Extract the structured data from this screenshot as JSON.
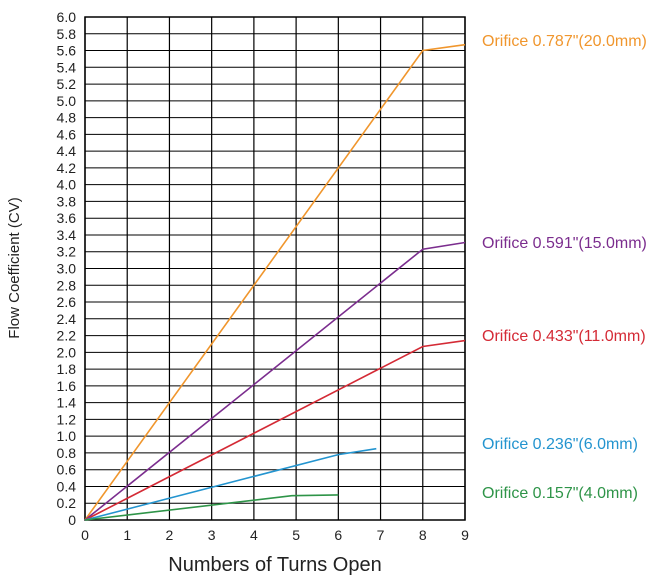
{
  "chart_data": {
    "type": "line",
    "xlabel": "Numbers of Turns Open",
    "ylabel": "Flow Coefficient (CV)",
    "xlim": [
      0,
      9
    ],
    "ylim": [
      0,
      6.0
    ],
    "x_ticks": [
      "0",
      "1",
      "2",
      "3",
      "4",
      "5",
      "6",
      "7",
      "8",
      "9"
    ],
    "y_ticks": [
      "0",
      "0.2",
      "0.4",
      "0.6",
      "0.8",
      "1.0",
      "1.2",
      "1.4",
      "1.6",
      "1.8",
      "2.0",
      "2.2",
      "2.4",
      "2.6",
      "2.8",
      "3.0",
      "3.2",
      "3.4",
      "3.6",
      "3.8",
      "4.0",
      "4.2",
      "4.4",
      "4.6",
      "4.8",
      "5.0",
      "5.2",
      "5.4",
      "5.6",
      "5.8",
      "6.0"
    ],
    "grid": true,
    "legend": "right",
    "series": [
      {
        "name": "Orifice 0.787\"(20.0mm)",
        "color": "#f0962d",
        "x": [
          0,
          8,
          9
        ],
        "y": [
          0,
          5.6,
          5.67
        ]
      },
      {
        "name": "Orifice 0.591\"(15.0mm)",
        "color": "#7b2d8e",
        "x": [
          0,
          8,
          9
        ],
        "y": [
          0,
          3.23,
          3.31
        ]
      },
      {
        "name": "Orifice 0.433\"(11.0mm)",
        "color": "#d42a35",
        "x": [
          0,
          8,
          9
        ],
        "y": [
          0,
          2.07,
          2.14
        ]
      },
      {
        "name": "Orifice 0.236\"(6.0mm)",
        "color": "#2394cf",
        "x": [
          0,
          6,
          6.9
        ],
        "y": [
          0,
          0.78,
          0.85
        ]
      },
      {
        "name": "Orifice 0.157\"(4.0mm)",
        "color": "#2e9448",
        "x": [
          0,
          4.9,
          6
        ],
        "y": [
          0,
          0.29,
          0.3
        ]
      }
    ]
  }
}
